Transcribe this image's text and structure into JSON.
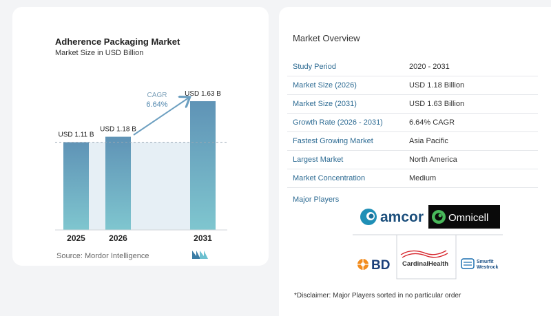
{
  "chart_data": {
    "type": "bar",
    "title": "Adherence Packaging Market",
    "subtitle": "Market Size in USD Billion",
    "categories": [
      "2025",
      "2026",
      "2031"
    ],
    "values": [
      1.11,
      1.18,
      1.63
    ],
    "data_labels": [
      "USD 1.11 B",
      "USD 1.18 B",
      "USD 1.63 B"
    ],
    "cagr_label": "CAGR",
    "cagr_value": "6.64%",
    "bar_color": "#6497b8",
    "bar_color_light": "#7cc3cf",
    "shade_color": "#e6eff5",
    "ylim": [
      0,
      1.9
    ]
  },
  "source": "Source:  Mordor Intelligence",
  "overview": {
    "title": "Market Overview",
    "rows": [
      {
        "label": "Study Period",
        "value": "2020 - 2031"
      },
      {
        "label": "Market Size (2026)",
        "value": "USD 1.18 Billion"
      },
      {
        "label": "Market Size (2031)",
        "value": "USD 1.63 Billion"
      },
      {
        "label": "Growth Rate (2026 - 2031)",
        "value": "6.64% CAGR"
      },
      {
        "label": "Fastest Growing Market",
        "value": "Asia Pacific"
      },
      {
        "label": "Largest Market",
        "value": "North America"
      },
      {
        "label": "Market Concentration",
        "value": "Medium"
      }
    ]
  },
  "players": {
    "label": "Major Players",
    "logos": {
      "amcor": "amcor",
      "omnicell": "Omnicell",
      "bd": "BD",
      "cardinal": "CardinalHealth",
      "smurfit_1": "Smurfit",
      "smurfit_2": "Westrock"
    }
  },
  "disclaimer": "*Disclaimer: Major Players sorted in no particular order"
}
